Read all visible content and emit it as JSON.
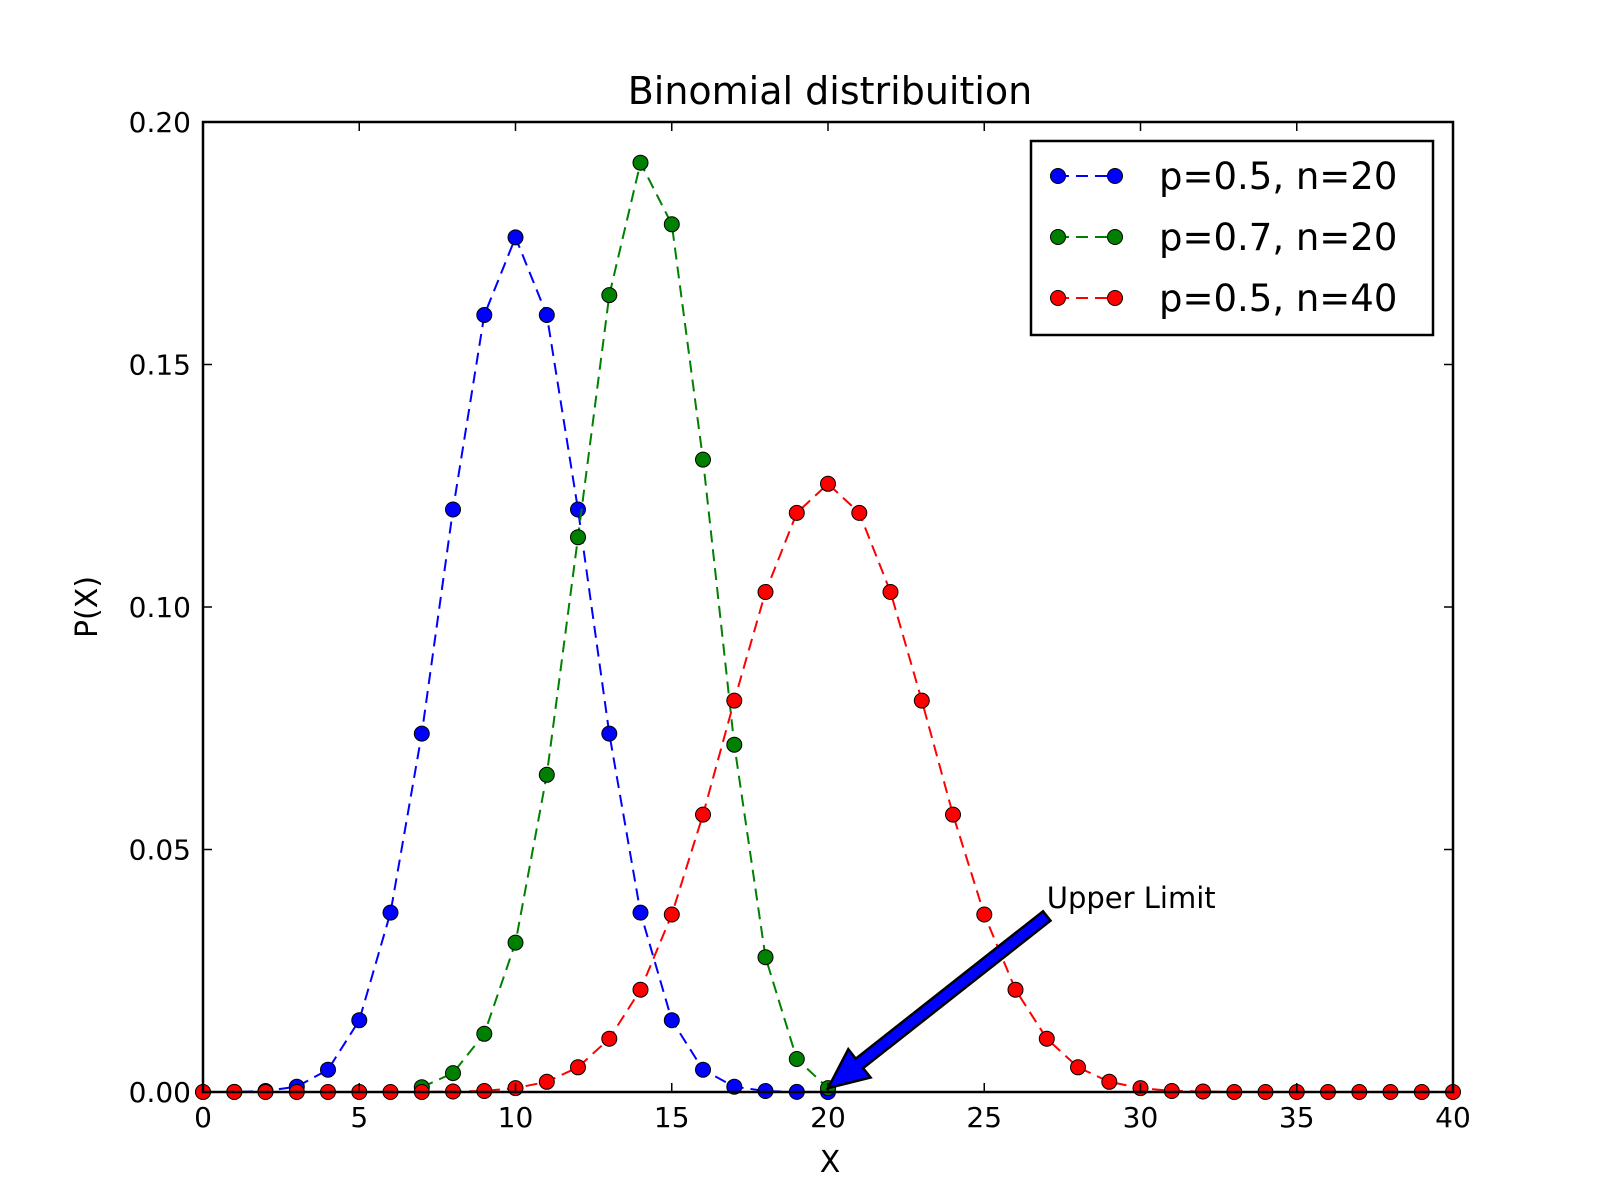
{
  "chart_data": {
    "type": "line",
    "title": "Binomial distribuition",
    "xlabel": "X",
    "ylabel": "P(X)",
    "xlim": [
      0,
      40
    ],
    "ylim": [
      0,
      0.2
    ],
    "x_ticks": [
      0,
      5,
      10,
      15,
      20,
      25,
      30,
      35,
      40
    ],
    "x_tick_labels": [
      "0",
      "5",
      "10",
      "15",
      "20",
      "25",
      "30",
      "35",
      "40"
    ],
    "y_ticks": [
      0,
      0.05,
      0.1,
      0.15,
      0.2
    ],
    "y_tick_labels": [
      "0.00",
      "0.05",
      "0.10",
      "0.15",
      "0.20"
    ],
    "grid": false,
    "legend_position": "top-right",
    "series": [
      {
        "name": "p=0.5, n=20",
        "color": "#0000ff",
        "line_style": "dashed",
        "marker": "circle",
        "x": [
          0,
          1,
          2,
          3,
          4,
          5,
          6,
          7,
          8,
          9,
          10,
          11,
          12,
          13,
          14,
          15,
          16,
          17,
          18,
          19,
          20
        ],
        "y": [
          1e-06,
          2e-05,
          0.0002,
          0.0011,
          0.0046,
          0.0148,
          0.037,
          0.0739,
          0.1201,
          0.1602,
          0.1762,
          0.1602,
          0.1201,
          0.0739,
          0.037,
          0.0148,
          0.0046,
          0.0011,
          0.0002,
          2e-05,
          1e-06
        ]
      },
      {
        "name": "p=0.7, n=20",
        "color": "#008000",
        "line_style": "dashed",
        "marker": "circle",
        "x": [
          7,
          8,
          9,
          10,
          11,
          12,
          13,
          14,
          15,
          16,
          17,
          18,
          19,
          20
        ],
        "y": [
          0.001,
          0.0039,
          0.012,
          0.0308,
          0.0654,
          0.1144,
          0.1643,
          0.1916,
          0.1789,
          0.1304,
          0.0716,
          0.0278,
          0.0068,
          0.0008
        ]
      },
      {
        "name": "p=0.5, n=40",
        "color": "#ff0000",
        "line_style": "dashed",
        "marker": "circle",
        "x": [
          0,
          1,
          2,
          3,
          4,
          5,
          6,
          7,
          8,
          9,
          10,
          11,
          12,
          13,
          14,
          15,
          16,
          17,
          18,
          19,
          20,
          21,
          22,
          23,
          24,
          25,
          26,
          27,
          28,
          29,
          30,
          31,
          32,
          33,
          34,
          35,
          36,
          37,
          38,
          39,
          40
        ],
        "y": [
          0,
          0,
          0,
          0,
          0,
          0,
          0,
          0,
          0.0001,
          0.0002,
          0.0008,
          0.0021,
          0.0051,
          0.011,
          0.0211,
          0.0366,
          0.0572,
          0.0807,
          0.1031,
          0.1194,
          0.1254,
          0.1194,
          0.1031,
          0.0807,
          0.0572,
          0.0366,
          0.0211,
          0.011,
          0.0051,
          0.0021,
          0.0008,
          0.0002,
          0.0001,
          0,
          0,
          0,
          0,
          0,
          0,
          0,
          0
        ]
      }
    ],
    "annotations": [
      {
        "text": "Upper Limit",
        "text_at": [
          27,
          0.04
        ],
        "arrow_to": [
          20,
          0.0008
        ],
        "arrow_color": "#0000ff"
      }
    ]
  }
}
